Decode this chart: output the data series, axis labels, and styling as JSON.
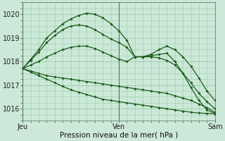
{
  "xlabel": "Pression niveau de la mer( hPa )",
  "ylim": [
    1015.5,
    1020.5
  ],
  "xlim": [
    0,
    48
  ],
  "yticks": [
    1016,
    1017,
    1018,
    1019,
    1020
  ],
  "xtick_positions": [
    0,
    24,
    48
  ],
  "xtick_labels": [
    "Jeu",
    "Ven",
    "Sam"
  ],
  "bg_color": "#cce8d8",
  "grid_color": "#99ccaa",
  "line_color_dark": "#1a5c1a",
  "line_color_mid": "#2a7a2a",
  "series": [
    [
      1017.7,
      1018.05,
      1018.4,
      1018.8,
      1019.1,
      1019.35,
      1019.5,
      1019.55,
      1019.5,
      1019.35,
      1019.15,
      1018.95,
      1018.8,
      1018.6,
      1018.2,
      1018.2,
      1018.3,
      1018.5,
      1018.65,
      1018.5,
      1018.2,
      1017.8,
      1017.3,
      1016.75,
      1016.35
    ],
    [
      1017.7,
      1018.1,
      1018.5,
      1019.0,
      1019.3,
      1019.6,
      1019.8,
      1019.95,
      1020.05,
      1020.0,
      1019.85,
      1019.6,
      1019.3,
      1018.9,
      1018.2,
      1018.2,
      1018.25,
      1018.3,
      1018.35,
      1018.0,
      1017.5,
      1016.9,
      1016.35,
      1015.95,
      1015.8
    ],
    [
      1017.7,
      1017.85,
      1018.0,
      1018.2,
      1018.35,
      1018.5,
      1018.6,
      1018.65,
      1018.65,
      1018.55,
      1018.4,
      1018.25,
      1018.1,
      1018.0,
      1018.2,
      1018.2,
      1018.2,
      1018.15,
      1018.05,
      1017.85,
      1017.5,
      1017.1,
      1016.65,
      1016.3,
      1016.0
    ],
    [
      1017.7,
      1017.6,
      1017.5,
      1017.4,
      1017.35,
      1017.3,
      1017.25,
      1017.2,
      1017.15,
      1017.1,
      1017.05,
      1017.0,
      1016.95,
      1016.9,
      1016.85,
      1016.8,
      1016.75,
      1016.7,
      1016.65,
      1016.55,
      1016.45,
      1016.35,
      1016.2,
      1016.05,
      1015.85
    ],
    [
      1017.7,
      1017.55,
      1017.4,
      1017.25,
      1017.1,
      1016.95,
      1016.8,
      1016.7,
      1016.6,
      1016.5,
      1016.4,
      1016.35,
      1016.3,
      1016.25,
      1016.2,
      1016.15,
      1016.1,
      1016.05,
      1016.0,
      1015.95,
      1015.9,
      1015.85,
      1015.82,
      1015.8,
      1015.78
    ]
  ],
  "figsize": [
    3.2,
    2.0
  ],
  "dpi": 100
}
